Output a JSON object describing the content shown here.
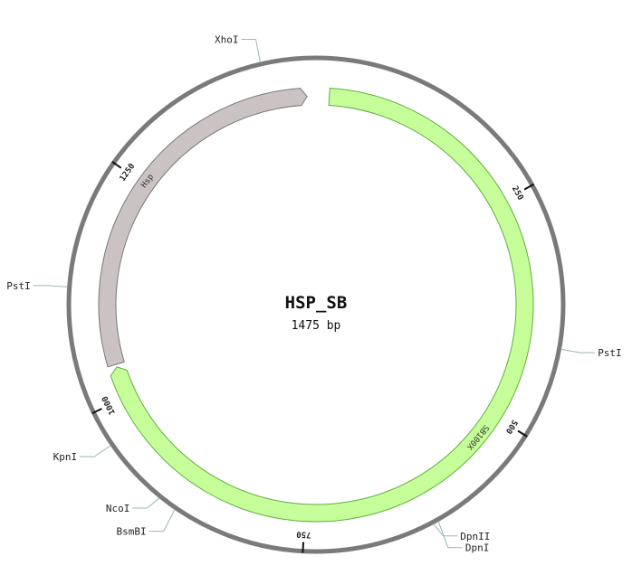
{
  "plasmid": {
    "name": "HSP_SB",
    "size_label": "1475 bp",
    "length_bp": 1475,
    "backbone_color": "#7a7a7a"
  },
  "ticks": [
    {
      "bp": 250,
      "label": "250"
    },
    {
      "bp": 500,
      "label": "500"
    },
    {
      "bp": 750,
      "label": "750"
    },
    {
      "bp": 1000,
      "label": "1000"
    },
    {
      "bp": 1250,
      "label": "1250"
    }
  ],
  "features": [
    {
      "name": "SB100X",
      "start_bp": 15,
      "end_bp": 1035,
      "direction": "forward",
      "color": "#c6ff99",
      "stroke": "#5fae3e",
      "label_bp": 530
    },
    {
      "name": "Hsp",
      "start_bp": 1038,
      "end_bp": 1465,
      "direction": "forward",
      "color": "#cbc3c3",
      "stroke": "#777777",
      "label_bp": 1255
    }
  ],
  "sites": [
    {
      "name": "XhoI",
      "bp": 1422
    },
    {
      "name": "PstI",
      "bp": 1123
    },
    {
      "name": "PstI",
      "bp": 411
    },
    {
      "name": "KpnI",
      "bp": 965
    },
    {
      "name": "NcoI",
      "bp": 897
    },
    {
      "name": "BsmBI",
      "bp": 879
    },
    {
      "name": "DpnII",
      "bp": 622
    },
    {
      "name": "DpnI",
      "bp": 617
    }
  ]
}
